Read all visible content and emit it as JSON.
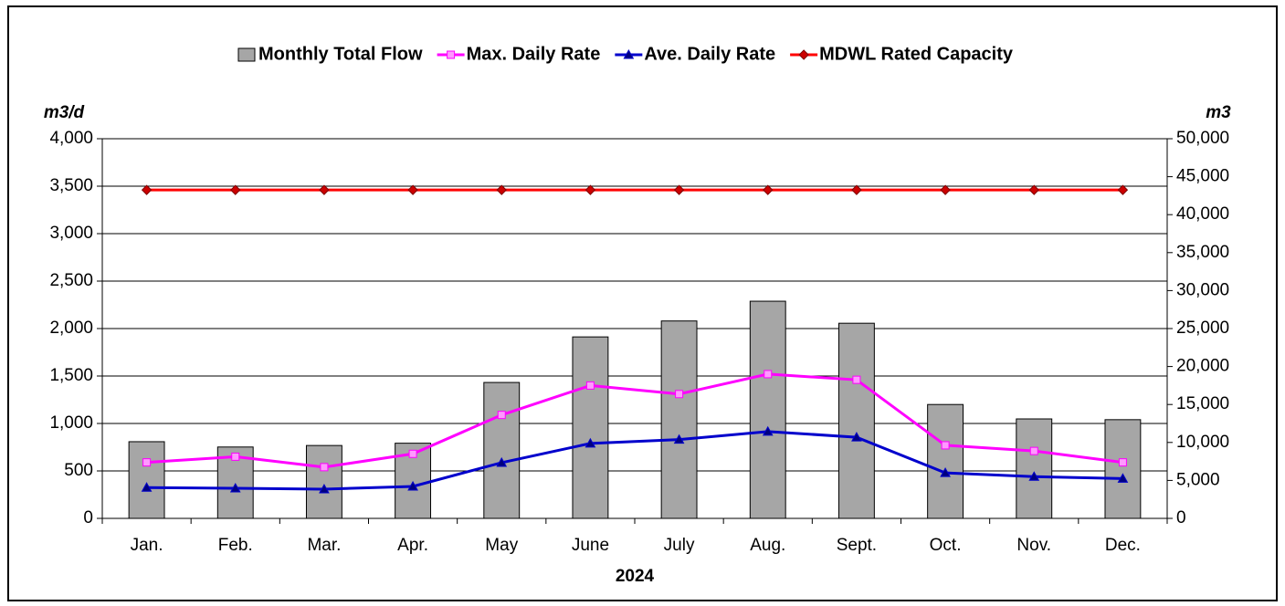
{
  "chart_data": {
    "type": "combo",
    "categories": [
      "Jan.",
      "Feb.",
      "Mar.",
      "Apr.",
      "May",
      "June",
      "July",
      "Aug.",
      "Sept.",
      "Oct.",
      "Nov.",
      "Dec."
    ],
    "x_label": "2024",
    "y_label": "m3/d",
    "y2_label": "m3",
    "ylim": [
      0,
      4000
    ],
    "yticks": [
      0,
      500,
      {
        "value": 1000,
        "label": "1,000"
      },
      {
        "value": 1500,
        "label": "1,500"
      },
      {
        "value": 2000,
        "label": "2,000"
      },
      {
        "value": 2500,
        "label": "2,500"
      },
      {
        "value": 3000,
        "label": "3,000"
      },
      {
        "value": 3500,
        "label": "3,500"
      },
      {
        "value": 4000,
        "label": "4,000"
      }
    ],
    "y2lim": [
      0,
      50000
    ],
    "y2ticks": [
      0,
      {
        "value": 5000,
        "label": "5,000"
      },
      {
        "value": 10000,
        "label": "10,000"
      },
      {
        "value": 15000,
        "label": "15,000"
      },
      {
        "value": 20000,
        "label": "20,000"
      },
      {
        "value": 25000,
        "label": "25,000"
      },
      {
        "value": 30000,
        "label": "30,000"
      },
      {
        "value": 35000,
        "label": "35,000"
      },
      {
        "value": 40000,
        "label": "40,000"
      },
      {
        "value": 45000,
        "label": "45,000"
      },
      {
        "value": 50000,
        "label": "50,000"
      }
    ],
    "grid": true,
    "legend": "top",
    "series": [
      {
        "name": "Monthly Total Flow",
        "type": "bar",
        "axis": "y2",
        "color": "#a6a6a6",
        "values": [
          10100,
          9400,
          9600,
          9900,
          17900,
          23900,
          26000,
          28600,
          25700,
          15000,
          13100,
          13000
        ]
      },
      {
        "name": "Max. Daily Rate",
        "type": "line",
        "marker": "square",
        "color": "#ff00ff",
        "values": [
          590,
          650,
          540,
          680,
          1090,
          1400,
          1310,
          1520,
          1460,
          770,
          710,
          590
        ]
      },
      {
        "name": "Ave. Daily Rate",
        "type": "line",
        "marker": "triangle",
        "color": "#0000cc",
        "values": [
          325,
          317,
          308,
          337,
          587,
          790,
          830,
          915,
          855,
          480,
          440,
          420
        ]
      },
      {
        "name": "MDWL Rated Capacity",
        "type": "line",
        "marker": "diamond",
        "color": "#ff0000",
        "values": [
          3460,
          3460,
          3460,
          3460,
          3460,
          3460,
          3460,
          3460,
          3460,
          3460,
          3460,
          3460
        ]
      }
    ]
  }
}
